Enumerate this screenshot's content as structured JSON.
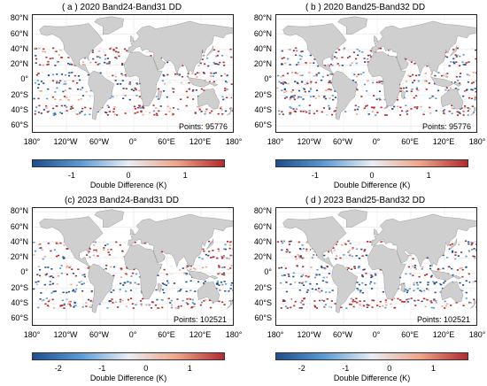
{
  "colorbar": {
    "label": "Double Difference (K)",
    "colors": [
      "#1f4e8c",
      "#5a9bd5",
      "#e8eef4",
      "#f0a58a",
      "#b22b2e"
    ]
  },
  "lat_labels": [
    "80°N",
    "60°N",
    "40°N",
    "20°N",
    "0°",
    "20°S",
    "40°S",
    "60°S"
  ],
  "lon_labels": [
    "180°",
    "120°W",
    "60°W",
    "0°",
    "60°E",
    "120°E",
    "180°"
  ],
  "panels": [
    {
      "title": "( a ) 2020 Band24-Band31 DD",
      "points_text": "Points: 95776",
      "cbar_ticks": [
        "-1",
        "0",
        "1"
      ],
      "cbar_range": [
        -1.7,
        1.7
      ]
    },
    {
      "title": "( b ) 2020 Band25-Band32 DD",
      "points_text": "Points: 95776",
      "cbar_ticks": [
        "-1",
        "0",
        "1"
      ],
      "cbar_range": [
        -1.7,
        1.7
      ]
    },
    {
      "title": "(c) 2023 Band24-Band31 DD",
      "points_text": "Points: 102521",
      "cbar_ticks": [
        "-2",
        "-1",
        "0",
        "1"
      ],
      "cbar_range": [
        -2.6,
        1.8
      ]
    },
    {
      "title": "( d ) 2023 Band25-Band32 DD",
      "points_text": "Points: 102521",
      "cbar_ticks": [
        "-2",
        "-1",
        "0",
        "1"
      ],
      "cbar_range": [
        -2.6,
        1.8
      ]
    }
  ]
}
